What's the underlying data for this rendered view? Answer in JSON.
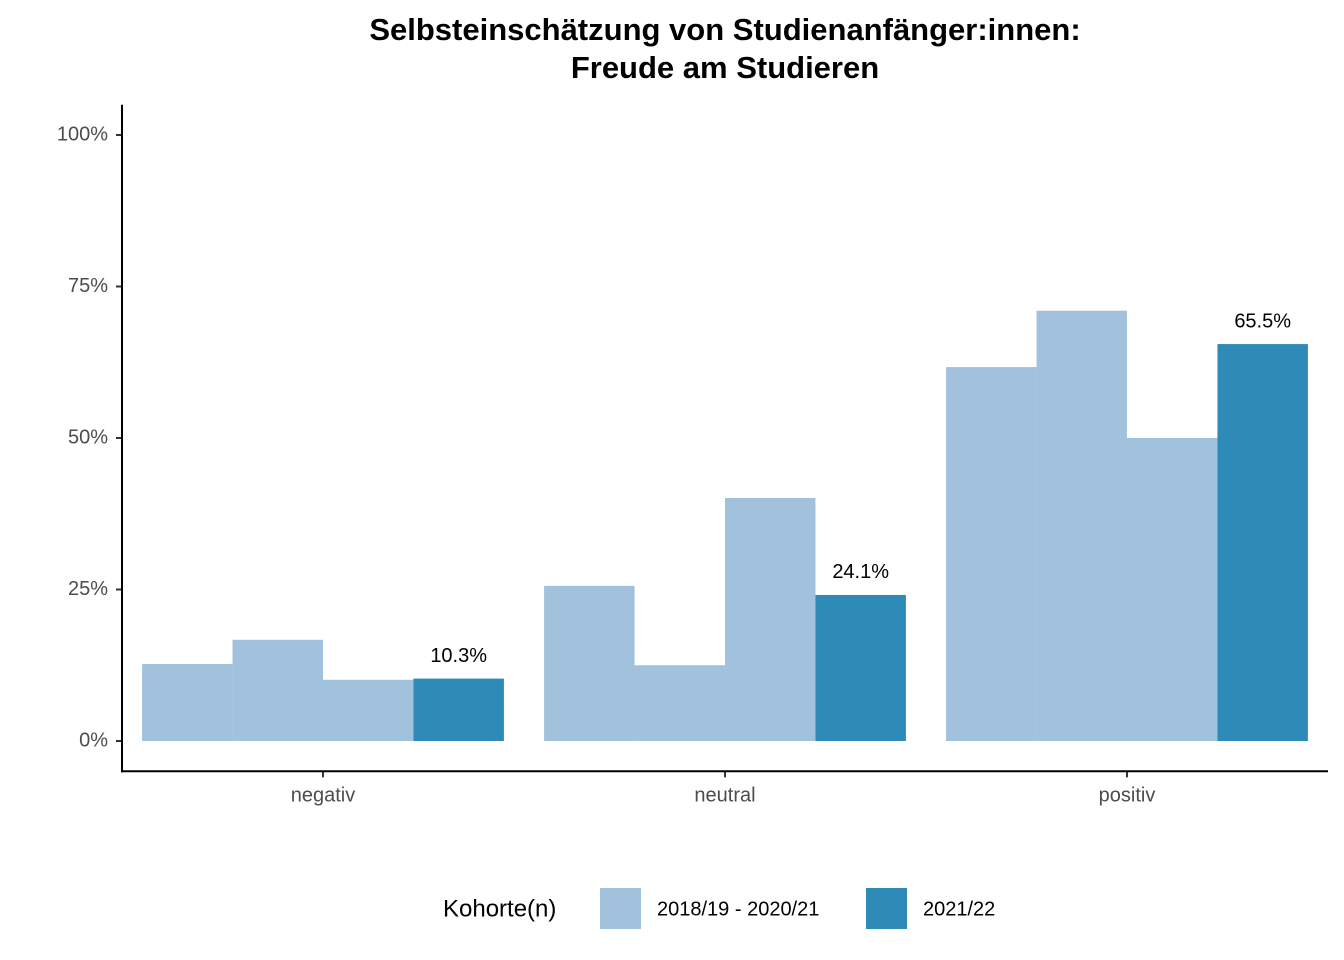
{
  "chart_data": {
    "type": "bar",
    "title": [
      "Selbsteinschätzung von Studienanfänger:innen:",
      "Freude am Studieren"
    ],
    "categories": [
      "negativ",
      "neutral",
      "positiv"
    ],
    "series": [
      {
        "name": "2018/19 - 2020/21",
        "color": "#a1c1dd",
        "values": [
          [
            12.7,
            25.6,
            61.7
          ],
          [
            16.7,
            12.5,
            71.0
          ],
          [
            10.1,
            40.1,
            50.0
          ]
        ]
      },
      {
        "name": "2021/22",
        "color": "#2e8bb7",
        "values": [
          10.3,
          24.1,
          65.5
        ],
        "value_labels": [
          "10.3%",
          "24.1%",
          "65.5%"
        ]
      }
    ],
    "ylim": [
      -5,
      105
    ],
    "yticks": [
      {
        "value": 0,
        "label": "0%"
      },
      {
        "value": 25,
        "label": "25%"
      },
      {
        "value": 50,
        "label": "50%"
      },
      {
        "value": 75,
        "label": "75%"
      },
      {
        "value": 100,
        "label": "100%"
      }
    ],
    "legend_title": "Kohorte(n)",
    "grid": false
  }
}
